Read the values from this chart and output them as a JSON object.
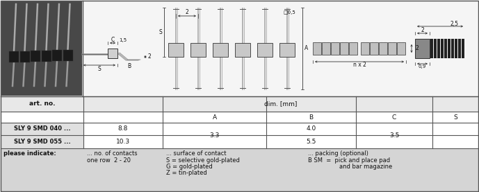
{
  "bg_color": "#f2f2f2",
  "photo_bg": "#c8c8c8",
  "diagram_bg": "#f2f2f2",
  "table_header_bg": "#f2f2f2",
  "table_row_bg": "#ffffff",
  "table_footer_bg": "#e0e0e0",
  "table_label_bg": "#d8d8d8",
  "border_color": "#555555",
  "text_color": "#111111",
  "art_no_label": "art. no.",
  "dim_label": "dim. [mm]",
  "col_headers": [
    "A",
    "B",
    "C",
    "S"
  ],
  "row1_label": "SLY 9 SMD 040 ...",
  "row2_label": "SLY 9 SMD 055 ...",
  "row1_A": "8.8",
  "row1_B": "3.3",
  "row1_C": "4.0",
  "row1_S": "3.5",
  "row2_A": "10.3",
  "row2_B": "3.3",
  "row2_C": "5.5",
  "row2_S": "3.5",
  "please_indicate": "please indicate:",
  "note1a": "... no. of contacts",
  "note1b": "one row  2 - 20",
  "note2a": "... surface of contact",
  "note2b": "S = selective gold-plated",
  "note2c": "G = gold-plated",
  "note2d": "Z = tin-plated",
  "note3a": "... packing (optional)",
  "note3b": "B SM  =  pick and place pad",
  "note3c": "and bar magazine",
  "connector_body_color": "#888888",
  "connector_pin_color": "#aaaaaa",
  "connector_dark": "#222222",
  "diagram_line_color": "#333333",
  "dim_line_color": "#555555"
}
